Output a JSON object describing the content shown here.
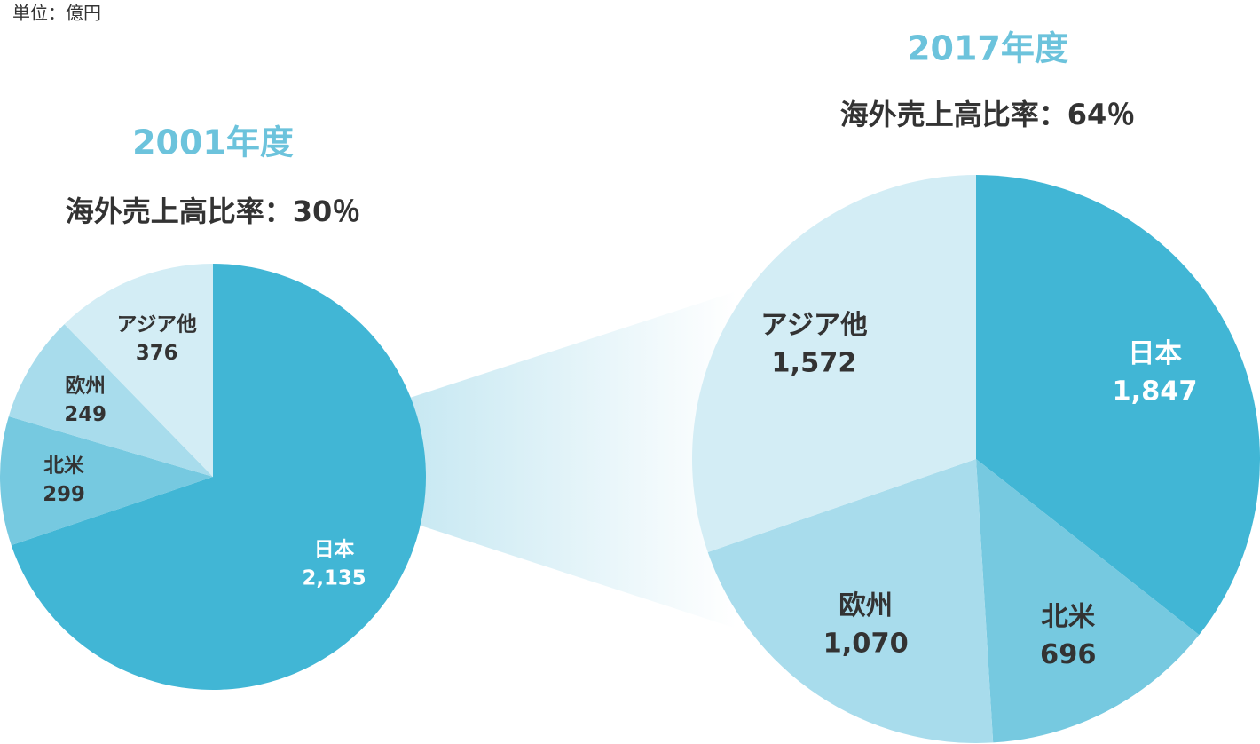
{
  "unit_label": "単位：億円",
  "chart_data": [
    {
      "type": "pie",
      "title": "2001年度",
      "subtitle": "海外売上高比率：30％",
      "categories": [
        "日本",
        "北米",
        "欧州",
        "アジア他"
      ],
      "values": [
        2135,
        299,
        249,
        376
      ],
      "value_labels": [
        "2,135",
        "299",
        "249",
        "376"
      ],
      "colors": [
        "#41b6d5",
        "#76c9e0",
        "#a8dcec",
        "#d3edf5"
      ]
    },
    {
      "type": "pie",
      "title": "2017年度",
      "subtitle": "海外売上高比率：64％",
      "categories": [
        "日本",
        "北米",
        "欧州",
        "アジア他"
      ],
      "values": [
        1847,
        696,
        1070,
        1572
      ],
      "value_labels": [
        "1,847",
        "696",
        "1,070",
        "1,572"
      ],
      "colors": [
        "#41b6d5",
        "#76c9e0",
        "#a8dcec",
        "#d3edf5"
      ]
    }
  ]
}
